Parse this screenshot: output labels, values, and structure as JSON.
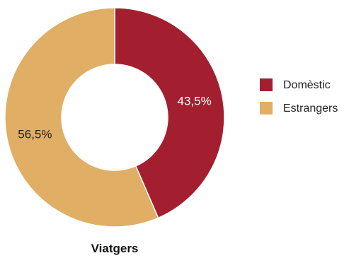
{
  "chart_data": {
    "type": "pie",
    "variant": "donut",
    "title": "Viatgers",
    "categories": [
      "Domèstic",
      "Estrangers"
    ],
    "values": [
      43.5,
      56.5
    ],
    "value_labels": [
      "43,5%",
      "56,5%"
    ],
    "colors": [
      "#a31f2f",
      "#e1ae65"
    ],
    "label_colors": [
      "#ffffff",
      "#222222"
    ],
    "legend": {
      "position": "right",
      "entries": [
        "Domèstic",
        "Estrangers"
      ]
    },
    "start_angle_deg": 0,
    "direction": "clockwise"
  }
}
